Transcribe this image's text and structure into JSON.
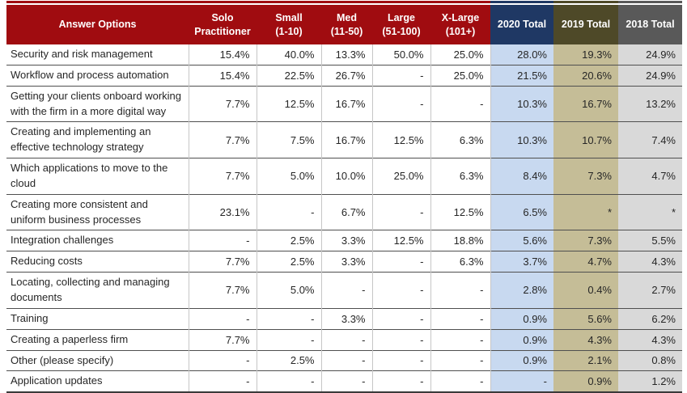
{
  "colors": {
    "header_red": "#A00C10",
    "header_navy": "#1F3864",
    "header_olive": "#4E4928",
    "header_gray": "#595959",
    "fill_blue": "#C8D9F0",
    "fill_khaki": "#C5BD97",
    "fill_gray": "#D9D9D9"
  },
  "header": {
    "columns": [
      "Answer Options",
      "Solo\nPractitioner",
      "Small\n(1-10)",
      "Med\n(11-50)",
      "Large\n(51-100)",
      "X-Large\n(101+)",
      "2020 Total",
      "2019 Total",
      "2018 Total"
    ]
  },
  "chart_data": {
    "type": "table",
    "columns": [
      "Answer Options",
      "Solo Practitioner",
      "Small (1-10)",
      "Med (11-50)",
      "Large (51-100)",
      "X-Large (101+)",
      "2020 Total",
      "2019 Total",
      "2018 Total"
    ],
    "rows": [
      {
        "label": "Security and risk management",
        "values": [
          "15.4%",
          "40.0%",
          "13.3%",
          "50.0%",
          "25.0%",
          "28.0%",
          "19.3%",
          "24.9%"
        ]
      },
      {
        "label": "Workflow and process automation",
        "values": [
          "15.4%",
          "22.5%",
          "26.7%",
          "-",
          "25.0%",
          "21.5%",
          "20.6%",
          "24.9%"
        ]
      },
      {
        "label": "Getting your clients onboard working with the firm in a more digital way",
        "values": [
          "7.7%",
          "12.5%",
          "16.7%",
          "-",
          "-",
          "10.3%",
          "16.7%",
          "13.2%"
        ]
      },
      {
        "label": "Creating and implementing an effective technology strategy",
        "values": [
          "7.7%",
          "7.5%",
          "16.7%",
          "12.5%",
          "6.3%",
          "10.3%",
          "10.7%",
          "7.4%"
        ]
      },
      {
        "label": "Which applications to move to the cloud",
        "values": [
          "7.7%",
          "5.0%",
          "10.0%",
          "25.0%",
          "6.3%",
          "8.4%",
          "7.3%",
          "4.7%"
        ]
      },
      {
        "label": "Creating more consistent and uniform business processes",
        "values": [
          "23.1%",
          "-",
          "6.7%",
          "-",
          "12.5%",
          "6.5%",
          "*",
          "*"
        ]
      },
      {
        "label": "Integration challenges",
        "values": [
          "-",
          "2.5%",
          "3.3%",
          "12.5%",
          "18.8%",
          "5.6%",
          "7.3%",
          "5.5%"
        ]
      },
      {
        "label": "Reducing costs",
        "values": [
          "7.7%",
          "2.5%",
          "3.3%",
          "-",
          "6.3%",
          "3.7%",
          "4.7%",
          "4.3%"
        ]
      },
      {
        "label": "Locating, collecting and managing documents",
        "values": [
          "7.7%",
          "5.0%",
          "-",
          "-",
          "-",
          "2.8%",
          "0.4%",
          "2.7%"
        ]
      },
      {
        "label": "Training",
        "values": [
          "-",
          "-",
          "3.3%",
          "-",
          "-",
          "0.9%",
          "5.6%",
          "6.2%"
        ]
      },
      {
        "label": "Creating a paperless firm",
        "values": [
          "7.7%",
          "-",
          "-",
          "-",
          "-",
          "0.9%",
          "4.3%",
          "4.3%"
        ]
      },
      {
        "label": "Other (please specify)",
        "values": [
          "-",
          "2.5%",
          "-",
          "-",
          "-",
          "0.9%",
          "2.1%",
          "0.8%"
        ]
      },
      {
        "label": "Application updates",
        "values": [
          "-",
          "-",
          "-",
          "-",
          "-",
          "-",
          "0.9%",
          "1.2%"
        ]
      }
    ]
  }
}
